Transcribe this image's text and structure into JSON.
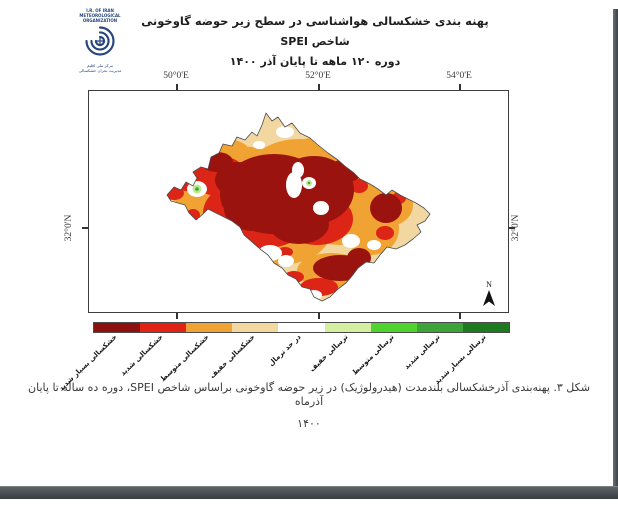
{
  "logo": {
    "org_lines": [
      "I.R. OF IRAN",
      "METEOROLOGICAL",
      "ORGANIZATION"
    ],
    "persian_lines": [
      "مرکز ملی اقلیم",
      "مدیریت بحران خشکسالی"
    ]
  },
  "title": {
    "line1": "پهنه بندی خشکسالی هواشناسی در سطح زیر حوضه گاوخونی",
    "line2": "شاخص SPEI",
    "line3": "دوره ۱۲۰ ماهه تا پایان آذر ۱۴۰۰"
  },
  "map": {
    "x_axis_labels": [
      "50°0'E",
      "52°0'E",
      "54°0'E"
    ],
    "y_axis_label_left": "32°0'N",
    "y_axis_label_right": "32°0'N",
    "north_arrow_label": "N"
  },
  "legend": {
    "classes": [
      {
        "label": "خشکسالی بسیار شدید",
        "color": "#8E1110"
      },
      {
        "label": "خشکسالی شدید",
        "color": "#E02314"
      },
      {
        "label": "خشکسالی متوسط",
        "color": "#F0A233"
      },
      {
        "label": "خشکسالی خفیف",
        "color": "#F3D7A1"
      },
      {
        "label": "در حد نرمال",
        "color": "#FFFFFF"
      },
      {
        "label": "ترسالی خفیف",
        "color": "#D5EFA0"
      },
      {
        "label": "ترسالی متوسط",
        "color": "#4FD42E"
      },
      {
        "label": "ترسالی شدید",
        "color": "#3CA438"
      },
      {
        "label": "ترسالی بسیار شدید",
        "color": "#1E7A1E"
      }
    ]
  },
  "map_colors": {
    "very_severe_drought": "#9B130E",
    "severe_drought": "#DD2517",
    "moderate_drought": "#F0A233",
    "mild_drought": "#F3D7A1",
    "normal": "#FFFFFF",
    "mild_wet_spot": "#BCE98C",
    "wet_spot_center": "#3CA438",
    "outline": "#4a4a4a"
  },
  "caption": {
    "line1": "شکل ۳. پهنه‌بندی آذرخشکسالی بلندمدت (هیدرولوژیک) در زیر حوضه گاوخونی براساس شاخص SPEI، دوره ده ساله تا پایان آذرماه",
    "line2": "۱۴۰۰"
  }
}
